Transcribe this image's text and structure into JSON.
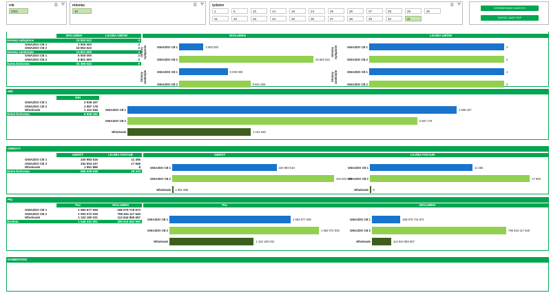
{
  "slicers": {
    "rok": {
      "title": "rok",
      "items": [
        "2021"
      ],
      "selected": "2021"
    },
    "miesiac": {
      "title": "miesiac",
      "items": [
        "10"
      ],
      "selected": "10"
    },
    "tydzien": {
      "title": "tydzien",
      "items": [
        "1",
        "6",
        "10",
        "14",
        "18",
        "24",
        "25",
        "26",
        "27",
        "28",
        "29",
        "30",
        "31",
        "32",
        "33",
        "34",
        "35",
        "36",
        "37",
        "38",
        "39",
        "40",
        "41"
      ],
      "selected": "41"
    }
  },
  "buttons": {
    "refresh": "ODŚWIEŻANIE DANYCH",
    "save_pdf": "ZAPISZ JAKO PDF"
  },
  "umowy": {
    "headers": {
      "wolumen": "WOLUMEN",
      "liczba": "LICZBA UMÓW",
      "chart_wolumen": "WOLUMEN",
      "chart_liczba": "LICZBA UMÓW"
    },
    "rows": [
      {
        "label": "Umowy wyłupione",
        "wolumen": "19 553 522",
        "liczba": "4",
        "green": true
      },
      {
        "label": "GNIAZDO CB 1",
        "wolumen": "3 000 000",
        "liczba": "2",
        "green": false
      },
      {
        "label": "GNIAZDO CB 2",
        "wolumen": "16 553 522",
        "liczba": "2",
        "green": false
      },
      {
        "label": "Umowy zamknięte",
        "wolumen": "14 801 500",
        "liczba": "4",
        "green": true
      },
      {
        "label": "GNIAZDO CB 1",
        "wolumen": "6 000 000",
        "liczba": "2",
        "green": false
      },
      {
        "label": "GNIAZDO CB 2",
        "wolumen": "8 801 500",
        "liczba": "2",
        "green": false
      },
      {
        "label": "Suma końcowa",
        "wolumen": "34 355 022",
        "liczba": "8",
        "green": true
      }
    ],
    "group_labels": [
      "Umowy wyłupione",
      "Umowy zamknięte"
    ],
    "wolumen_bars": [
      {
        "label": "GNIAZDO CB 1",
        "value": 3000000,
        "text": "3 000 000",
        "color": "blue"
      },
      {
        "label": "GNIAZDO CB 2",
        "value": 16553522,
        "text": "16 553 522",
        "color": "lgreen"
      },
      {
        "label": "GNIAZDO CB 1",
        "value": 6000000,
        "text": "6 000 000",
        "color": "blue"
      },
      {
        "label": "GNIAZDO CB 2",
        "value": 8801500,
        "text": "8 801 500",
        "color": "lgreen"
      }
    ],
    "liczba_bars": [
      {
        "label": "GNIAZDO CB 1",
        "value": 2,
        "text": "2",
        "color": "blue"
      },
      {
        "label": "GNIAZDO CB 2",
        "value": 2,
        "text": "2",
        "color": "lgreen"
      },
      {
        "label": "GNIAZDO CB 1",
        "value": 2,
        "text": "2",
        "color": "blue"
      },
      {
        "label": "GNIAZDO CB 2",
        "value": 2,
        "text": "2",
        "color": "lgreen"
      }
    ]
  },
  "nbi": {
    "section": "NBI",
    "header": "NBI",
    "rows": [
      {
        "label": "GNIAZDO CB 1",
        "value": "2 939 437",
        "green": false
      },
      {
        "label": "GNIAZDO CB 2",
        "value": "2 587 178",
        "green": false
      },
      {
        "label": "Wholesale",
        "value": "1 101 546",
        "green": false
      },
      {
        "label": "Suma końcowa",
        "value": "6 628 161",
        "green": true
      }
    ],
    "bars": [
      {
        "label": "GNIAZDO CB 1",
        "value": 2939437,
        "text": "2 939 437",
        "color": "blue"
      },
      {
        "label": "GNIAZDO CB 2",
        "value": 2587178,
        "text": "2 587 178",
        "color": "lgreen"
      },
      {
        "label": "Wholesale",
        "value": 1101546,
        "text": "1 101 546",
        "color": "dgreen"
      }
    ]
  },
  "obroty": {
    "section": "OBROTY",
    "headers": {
      "obrot": "OBRÓT",
      "liczba": "LICZBA FAKTUR",
      "chart_obrot": "OBRÓT",
      "chart_liczba": "LICZBA FAKTUR"
    },
    "rows": [
      {
        "label": "GNIAZDO CB 1",
        "obrot": "220 983 516",
        "liczba": "11 456",
        "green": false
      },
      {
        "label": "GNIAZDO CB 2",
        "obrot": "342 604 247",
        "liczba": "17 846",
        "green": false
      },
      {
        "label": "Wholesale",
        "obrot": "1 961 886",
        "liczba": "8",
        "green": false
      },
      {
        "label": "Suma końcowa",
        "obrot": "565 549 648",
        "liczba": "29 310",
        "green": true
      }
    ],
    "obrot_bars": [
      {
        "label": "GNIAZDO CB 1",
        "value": 220983516,
        "text": "220 983 516",
        "color": "blue"
      },
      {
        "label": "GNIAZDO CB 2",
        "value": 342604247,
        "text": "342 604 247",
        "color": "lgreen"
      },
      {
        "label": "Wholesale",
        "value": 1961886,
        "text": "1 961 886",
        "color": "dgreen"
      }
    ],
    "liczba_bars": [
      {
        "label": "GNIAZDO CB 1",
        "value": 11456,
        "text": "11 456",
        "color": "blue"
      },
      {
        "label": "GNIAZDO CB 2",
        "value": 17846,
        "text": "17 846",
        "color": "lgreen"
      },
      {
        "label": "Wholesale",
        "value": 8,
        "text": "8",
        "color": "dgreen"
      }
    ]
  },
  "piu": {
    "section": "PIU",
    "headers": {
      "piu": "PIU",
      "wolumen": "WOLUMEN",
      "chart_piu": "PIU",
      "chart_wolumen": "WOLUMEN"
    },
    "rows": [
      {
        "label": "GNIAZDO CB 1",
        "piu": "1 583 677 936",
        "wolumen": "168 079 715 672",
        "green": false
      },
      {
        "label": "GNIAZDO CB 2",
        "piu": "1 953 072 035",
        "wolumen": "796 634 117 640",
        "green": false
      },
      {
        "label": "Wholesale",
        "piu": "1 102 180 031",
        "wolumen": "113 844 855 657",
        "green": false
      },
      {
        "label": "Średnia",
        "piu": "1 546 310 001",
        "wolumen": "359 519 562 990",
        "green": true
      }
    ],
    "piu_bars": [
      {
        "label": "GNIAZDO CB 1",
        "value": 1583677936,
        "text": "1 583 677 936",
        "color": "blue"
      },
      {
        "label": "GNIAZDO CB 2",
        "value": 1953072035,
        "text": "1 953 072 035",
        "color": "lgreen"
      },
      {
        "label": "Wholesale",
        "value": 1102180031,
        "text": "1 102 180 031",
        "color": "dgreen"
      }
    ],
    "wolumen_bars": [
      {
        "label": "GNIAZDO CB 1",
        "value": 168079715672,
        "text": "168 079 715 672",
        "color": "blue"
      },
      {
        "label": "GNIAZDO CB 2",
        "value": 796634117640,
        "text": "796 634 117 640",
        "color": "lgreen"
      },
      {
        "label": "Wholesale",
        "value": 113844855657,
        "text": "113 844 855 657",
        "color": "dgreen"
      }
    ]
  },
  "komentarz": {
    "section": "KOMENTARZ"
  },
  "colors": {
    "green": "#00a651",
    "blue": "#1874cd",
    "light_green": "#92d050",
    "dark_green": "#3d5f1e"
  }
}
